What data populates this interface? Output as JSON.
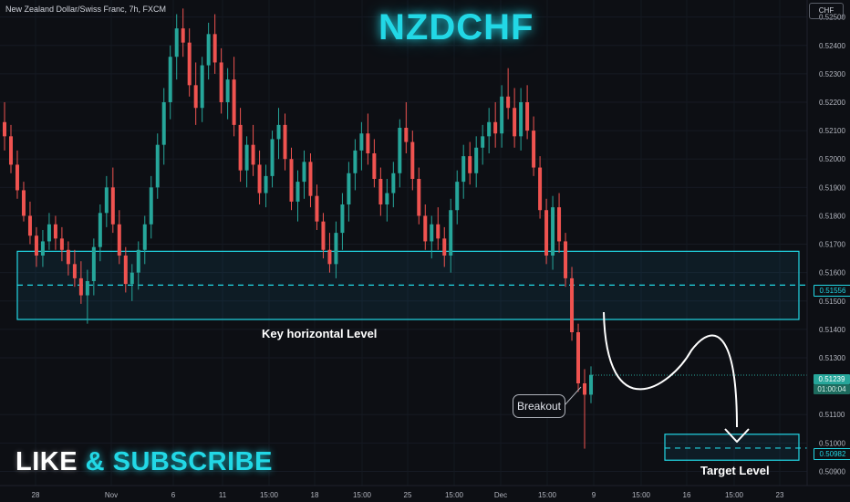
{
  "header": {
    "symbol_line": "New Zealand Dollar/Swiss Franc, 7h, FXCM",
    "currency_badge": "CHF"
  },
  "overlay": {
    "title": "NZDCHF",
    "key_level_label": "Key horizontal Level",
    "target_label": "Target Level",
    "breakout_label": "Breakout",
    "like_word": "LIKE",
    "amp": "&",
    "subscribe_word": "SUBSCRIBE"
  },
  "price_tags": {
    "mid_level": "0.51556",
    "current_price": "0.51239",
    "countdown": "01:00:04",
    "target": "0.50982"
  },
  "colors": {
    "up": "#26a69a",
    "down": "#ef5350",
    "zone": "#22d8e6",
    "background": "#0d0f14"
  },
  "chart_data": {
    "type": "candlestick",
    "ylim": [
      0.5085,
      0.5256
    ],
    "y_ticks": [
      "0.52500",
      "0.52400",
      "0.52300",
      "0.52200",
      "0.52100",
      "0.52000",
      "0.51900",
      "0.51800",
      "0.51700",
      "0.51600",
      "0.51500",
      "0.51400",
      "0.51300",
      "0.51100",
      "0.51000",
      "0.50900"
    ],
    "x_ticks": [
      "28",
      "Nov",
      "6",
      "11",
      "15:00",
      "18",
      "15:00",
      "25",
      "15:00",
      "Dec",
      "15:00",
      "9",
      "15:00",
      "16",
      "15:00",
      "23"
    ],
    "zones": {
      "key_level": {
        "top": 0.51675,
        "bottom": 0.51435,
        "mid": 0.51556
      },
      "target_level": {
        "top": 0.51005,
        "bottom": 0.50965,
        "mid": 0.50982
      }
    },
    "current_price": 0.51239,
    "candles": [
      [
        0.5213,
        0.522,
        0.5203,
        0.5208
      ],
      [
        0.5208,
        0.5212,
        0.5195,
        0.5198
      ],
      [
        0.5198,
        0.5203,
        0.5186,
        0.5189
      ],
      [
        0.5189,
        0.5192,
        0.5178,
        0.518
      ],
      [
        0.518,
        0.5185,
        0.517,
        0.5173
      ],
      [
        0.5173,
        0.5176,
        0.5162,
        0.5166
      ],
      [
        0.5166,
        0.5175,
        0.5162,
        0.5171
      ],
      [
        0.5171,
        0.5181,
        0.5168,
        0.5177
      ],
      [
        0.5177,
        0.518,
        0.5168,
        0.5172
      ],
      [
        0.5172,
        0.5176,
        0.5164,
        0.5168
      ],
      [
        0.5168,
        0.5171,
        0.5159,
        0.5163
      ],
      [
        0.5163,
        0.5168,
        0.5155,
        0.5158
      ],
      [
        0.5158,
        0.5164,
        0.5149,
        0.5152
      ],
      [
        0.5152,
        0.5161,
        0.5142,
        0.5157
      ],
      [
        0.5157,
        0.5172,
        0.5152,
        0.5169
      ],
      [
        0.5169,
        0.5184,
        0.5164,
        0.5181
      ],
      [
        0.5181,
        0.5194,
        0.5176,
        0.519
      ],
      [
        0.519,
        0.5197,
        0.5174,
        0.5177
      ],
      [
        0.5177,
        0.5182,
        0.5163,
        0.5166
      ],
      [
        0.5166,
        0.5169,
        0.5153,
        0.5156
      ],
      [
        0.5156,
        0.5163,
        0.515,
        0.516
      ],
      [
        0.516,
        0.5171,
        0.5154,
        0.5168
      ],
      [
        0.5168,
        0.518,
        0.5163,
        0.5177
      ],
      [
        0.5177,
        0.5194,
        0.5172,
        0.519
      ],
      [
        0.519,
        0.5209,
        0.5186,
        0.5205
      ],
      [
        0.5205,
        0.5225,
        0.5198,
        0.522
      ],
      [
        0.522,
        0.524,
        0.5214,
        0.5236
      ],
      [
        0.5236,
        0.5251,
        0.5228,
        0.5246
      ],
      [
        0.5246,
        0.5253,
        0.5236,
        0.5241
      ],
      [
        0.5241,
        0.5246,
        0.5222,
        0.5226
      ],
      [
        0.5226,
        0.5234,
        0.5212,
        0.5218
      ],
      [
        0.5218,
        0.5236,
        0.5213,
        0.5233
      ],
      [
        0.5233,
        0.5248,
        0.5228,
        0.5244
      ],
      [
        0.5244,
        0.5251,
        0.523,
        0.5234
      ],
      [
        0.5234,
        0.5239,
        0.5216,
        0.522
      ],
      [
        0.522,
        0.5232,
        0.5214,
        0.5228
      ],
      [
        0.5228,
        0.5236,
        0.5208,
        0.5212
      ],
      [
        0.5212,
        0.5218,
        0.5192,
        0.5196
      ],
      [
        0.5196,
        0.5208,
        0.519,
        0.5205
      ],
      [
        0.5205,
        0.5212,
        0.5194,
        0.5198
      ],
      [
        0.5198,
        0.5203,
        0.5184,
        0.5188
      ],
      [
        0.5188,
        0.5198,
        0.5183,
        0.5194
      ],
      [
        0.5194,
        0.521,
        0.519,
        0.5207
      ],
      [
        0.5207,
        0.5218,
        0.52,
        0.5212
      ],
      [
        0.5212,
        0.5216,
        0.5196,
        0.52
      ],
      [
        0.52,
        0.5204,
        0.5182,
        0.5185
      ],
      [
        0.5185,
        0.5196,
        0.5178,
        0.5192
      ],
      [
        0.5192,
        0.5203,
        0.5186,
        0.5199
      ],
      [
        0.5199,
        0.5202,
        0.5183,
        0.5187
      ],
      [
        0.5187,
        0.5191,
        0.5175,
        0.5178
      ],
      [
        0.5178,
        0.5181,
        0.5165,
        0.5168
      ],
      [
        0.5168,
        0.5174,
        0.516,
        0.5163
      ],
      [
        0.5163,
        0.5178,
        0.5158,
        0.5174
      ],
      [
        0.5174,
        0.5188,
        0.5168,
        0.5184
      ],
      [
        0.5184,
        0.5199,
        0.5178,
        0.5195
      ],
      [
        0.5195,
        0.5207,
        0.5189,
        0.5203
      ],
      [
        0.5203,
        0.5213,
        0.5196,
        0.5209
      ],
      [
        0.5209,
        0.5216,
        0.5198,
        0.5202
      ],
      [
        0.5202,
        0.5207,
        0.519,
        0.5193
      ],
      [
        0.5193,
        0.5197,
        0.518,
        0.5184
      ],
      [
        0.5184,
        0.5193,
        0.5178,
        0.5188
      ],
      [
        0.5188,
        0.5199,
        0.5183,
        0.5195
      ],
      [
        0.5195,
        0.5214,
        0.519,
        0.5211
      ],
      [
        0.5211,
        0.522,
        0.5202,
        0.5206
      ],
      [
        0.5206,
        0.521,
        0.5189,
        0.5193
      ],
      [
        0.5193,
        0.5197,
        0.5177,
        0.518
      ],
      [
        0.518,
        0.5184,
        0.5168,
        0.5171
      ],
      [
        0.5171,
        0.518,
        0.5165,
        0.5177
      ],
      [
        0.5177,
        0.5183,
        0.5168,
        0.5172
      ],
      [
        0.5172,
        0.5176,
        0.5162,
        0.5166
      ],
      [
        0.5166,
        0.5186,
        0.516,
        0.5182
      ],
      [
        0.5182,
        0.5196,
        0.5177,
        0.5192
      ],
      [
        0.5192,
        0.5205,
        0.5186,
        0.5201
      ],
      [
        0.5201,
        0.5206,
        0.5191,
        0.5195
      ],
      [
        0.5195,
        0.5208,
        0.519,
        0.5204
      ],
      [
        0.5204,
        0.5212,
        0.5198,
        0.5208
      ],
      [
        0.5208,
        0.5218,
        0.5202,
        0.5213
      ],
      [
        0.5213,
        0.522,
        0.5204,
        0.5209
      ],
      [
        0.5209,
        0.5226,
        0.5204,
        0.5222
      ],
      [
        0.5222,
        0.5232,
        0.5214,
        0.5218
      ],
      [
        0.5218,
        0.5225,
        0.5204,
        0.5208
      ],
      [
        0.5208,
        0.5225,
        0.5203,
        0.522
      ],
      [
        0.522,
        0.5226,
        0.5207,
        0.521
      ],
      [
        0.521,
        0.5215,
        0.5194,
        0.5197
      ],
      [
        0.5197,
        0.5201,
        0.5179,
        0.5182
      ],
      [
        0.5182,
        0.5186,
        0.5163,
        0.5166
      ],
      [
        0.5166,
        0.5187,
        0.5161,
        0.5183
      ],
      [
        0.5183,
        0.5188,
        0.5167,
        0.5171
      ],
      [
        0.5171,
        0.5174,
        0.5155,
        0.5158
      ],
      [
        0.5158,
        0.5162,
        0.5136,
        0.5139
      ],
      [
        0.5139,
        0.5142,
        0.5118,
        0.5121
      ],
      [
        0.5121,
        0.5126,
        0.5098,
        0.5117
      ],
      [
        0.5117,
        0.5127,
        0.5114,
        0.5124
      ]
    ]
  }
}
